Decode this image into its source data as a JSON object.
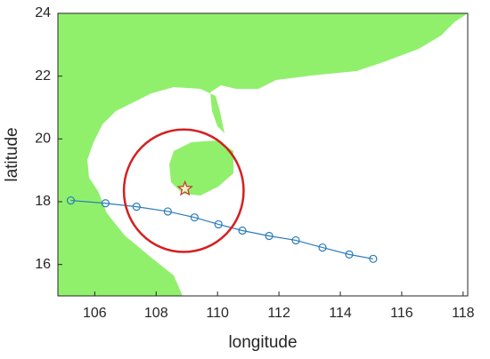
{
  "chart_data": {
    "type": "line",
    "x_label": "longitude",
    "y_label": "latitude",
    "xlim": [
      104.8,
      118.15
    ],
    "ylim": [
      15,
      24
    ],
    "xticks": [
      106,
      108,
      110,
      112,
      114,
      116,
      118
    ],
    "yticks": [
      16,
      18,
      20,
      22,
      24
    ],
    "x": [
      105.22,
      106.35,
      107.36,
      108.38,
      109.25,
      110.03,
      110.81,
      111.68,
      112.55,
      113.42,
      114.29,
      115.07
    ],
    "values": [
      18.04,
      17.95,
      17.84,
      17.69,
      17.5,
      17.28,
      17.08,
      16.91,
      16.77,
      16.54,
      16.32,
      16.18
    ],
    "color": "#2b7bba",
    "star": {
      "x": 108.94,
      "y": 18.41,
      "color": "#c0392b"
    },
    "circle": {
      "x": 108.9,
      "y": 18.35,
      "radius": 1.95,
      "color": "#d42020"
    }
  }
}
